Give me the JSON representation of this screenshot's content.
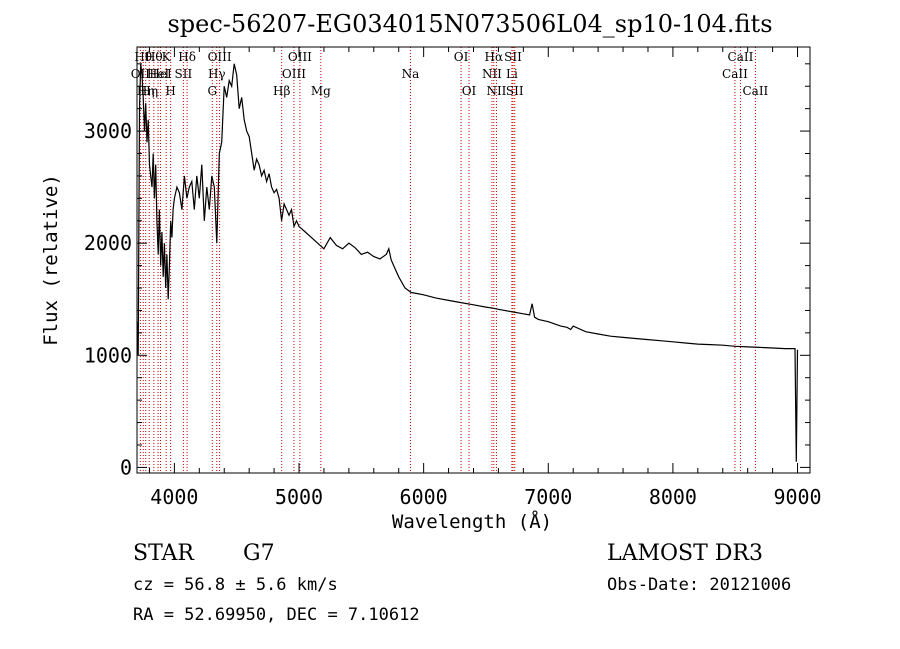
{
  "chart_data": {
    "type": "line",
    "title": "spec-56207-EG034015N073506L04_sp10-104.fits",
    "xlabel": "Wavelength (Å)",
    "ylabel": "Flux (relative)",
    "xlim": [
      3700,
      9100
    ],
    "ylim": [
      -50,
      3750
    ],
    "xticks": [
      4000,
      5000,
      6000,
      7000,
      8000,
      9000
    ],
    "yticks": [
      0,
      1000,
      2000,
      3000
    ],
    "xtick_labels": [
      "4000",
      "5000",
      "6000",
      "7000",
      "8000",
      "9000"
    ],
    "ytick_labels": [
      "0",
      "1000",
      "2000",
      "3000"
    ],
    "series": [
      {
        "name": "spectrum",
        "x": [
          3700,
          3710,
          3720,
          3730,
          3740,
          3750,
          3760,
          3770,
          3780,
          3790,
          3800,
          3810,
          3820,
          3830,
          3840,
          3850,
          3860,
          3870,
          3880,
          3890,
          3900,
          3910,
          3920,
          3930,
          3940,
          3950,
          3960,
          3970,
          3980,
          3990,
          4000,
          4020,
          4040,
          4060,
          4080,
          4100,
          4120,
          4140,
          4160,
          4180,
          4200,
          4220,
          4240,
          4260,
          4280,
          4300,
          4320,
          4340,
          4360,
          4380,
          4400,
          4420,
          4440,
          4460,
          4480,
          4500,
          4520,
          4540,
          4560,
          4580,
          4600,
          4620,
          4640,
          4660,
          4680,
          4700,
          4720,
          4740,
          4760,
          4780,
          4800,
          4820,
          4840,
          4860,
          4880,
          4900,
          4920,
          4940,
          4960,
          4980,
          5000,
          5050,
          5100,
          5150,
          5200,
          5250,
          5300,
          5350,
          5400,
          5450,
          5500,
          5550,
          5600,
          5650,
          5700,
          5720,
          5740,
          5760,
          5780,
          5800,
          5850,
          5900,
          5950,
          6000,
          6100,
          6200,
          6300,
          6400,
          6500,
          6560,
          6600,
          6700,
          6800,
          6850,
          6870,
          6890,
          6920,
          7000,
          7100,
          7150,
          7180,
          7200,
          7300,
          7400,
          7500,
          7600,
          7700,
          7800,
          7900,
          8000,
          8100,
          8200,
          8300,
          8400,
          8500,
          8600,
          8700,
          8800,
          8900,
          8980,
          8990,
          9000
        ],
        "values": [
          1300,
          1000,
          3200,
          3600,
          3500,
          3300,
          3000,
          3250,
          2900,
          3100,
          2700,
          2600,
          2500,
          2800,
          2400,
          2700,
          2200,
          1900,
          2300,
          1800,
          2100,
          1700,
          2000,
          1600,
          1900,
          1500,
          1800,
          2200,
          2050,
          2300,
          2400,
          2500,
          2450,
          2300,
          2600,
          2400,
          2500,
          2550,
          2300,
          2600,
          2400,
          2700,
          2200,
          2500,
          2300,
          2600,
          2500,
          2000,
          2800,
          2900,
          3400,
          3300,
          3450,
          3400,
          3600,
          3500,
          3200,
          3300,
          3100,
          3000,
          2950,
          2800,
          2650,
          2750,
          2700,
          2600,
          2650,
          2550,
          2620,
          2500,
          2450,
          2480,
          2400,
          2200,
          2350,
          2300,
          2250,
          2300,
          2150,
          2200,
          2150,
          2100,
          2050,
          2000,
          1950,
          2050,
          1980,
          1950,
          2000,
          1960,
          1900,
          1920,
          1880,
          1860,
          1900,
          1950,
          1850,
          1800,
          1750,
          1700,
          1600,
          1560,
          1550,
          1540,
          1510,
          1490,
          1470,
          1450,
          1430,
          1420,
          1410,
          1390,
          1370,
          1360,
          1460,
          1340,
          1320,
          1300,
          1260,
          1250,
          1230,
          1260,
          1210,
          1190,
          1170,
          1160,
          1150,
          1140,
          1130,
          1120,
          1110,
          1100,
          1095,
          1090,
          1080,
          1075,
          1070,
          1065,
          1060,
          1060,
          50,
          1050
        ]
      }
    ],
    "lines": [
      {
        "x": 3727,
        "label": "OII",
        "row": 2
      },
      {
        "x": 3750,
        "label": "Hθ",
        "row": 1
      },
      {
        "x": 3770,
        "label": "Hη",
        "row": 3
      },
      {
        "x": 3798,
        "label": "Hη",
        "row": 3
      },
      {
        "x": 3835,
        "label": "Hθ",
        "row": 1
      },
      {
        "x": 3869,
        "label": "HeI",
        "row": 2
      },
      {
        "x": 3889,
        "label": "HeI",
        "row": 2
      },
      {
        "x": 3934,
        "label": "K",
        "row": 1
      },
      {
        "x": 3970,
        "label": "H",
        "row": 3
      },
      {
        "x": 4072,
        "label": "SII",
        "row": 2
      },
      {
        "x": 4102,
        "label": "Hδ",
        "row": 1
      },
      {
        "x": 4304,
        "label": "G",
        "row": 3
      },
      {
        "x": 4340,
        "label": "Hγ",
        "row": 2
      },
      {
        "x": 4363,
        "label": "OIII",
        "row": 1
      },
      {
        "x": 4861,
        "label": "Hβ",
        "row": 3
      },
      {
        "x": 4959,
        "label": "OIII",
        "row": 2
      },
      {
        "x": 5007,
        "label": "OIII",
        "row": 1
      },
      {
        "x": 5175,
        "label": "Mg",
        "row": 3
      },
      {
        "x": 5894,
        "label": "Na",
        "row": 2
      },
      {
        "x": 6300,
        "label": "OI",
        "row": 1
      },
      {
        "x": 6364,
        "label": "OI",
        "row": 3
      },
      {
        "x": 6548,
        "label": "NII",
        "row": 2
      },
      {
        "x": 6563,
        "label": "Hα",
        "row": 1
      },
      {
        "x": 6584,
        "label": "NII",
        "row": 3
      },
      {
        "x": 6708,
        "label": "Li",
        "row": 2
      },
      {
        "x": 6717,
        "label": "SII",
        "row": 1
      },
      {
        "x": 6731,
        "label": "SII",
        "row": 3
      },
      {
        "x": 8498,
        "label": "CaII",
        "row": 2
      },
      {
        "x": 8542,
        "label": "CaII",
        "row": 1
      },
      {
        "x": 8662,
        "label": "CaII",
        "row": 3
      }
    ]
  },
  "info": {
    "object_class": "STAR",
    "subclass": "G7",
    "survey": "LAMOST DR3",
    "cz": "cz = 56.8 ± 5.6 km/s",
    "obs_date": "Obs-Date: 20121006",
    "coords": "RA =  52.69950, DEC =   7.10612"
  },
  "colors": {
    "line_marker": "#cc0000",
    "spectrum": "#000000"
  }
}
